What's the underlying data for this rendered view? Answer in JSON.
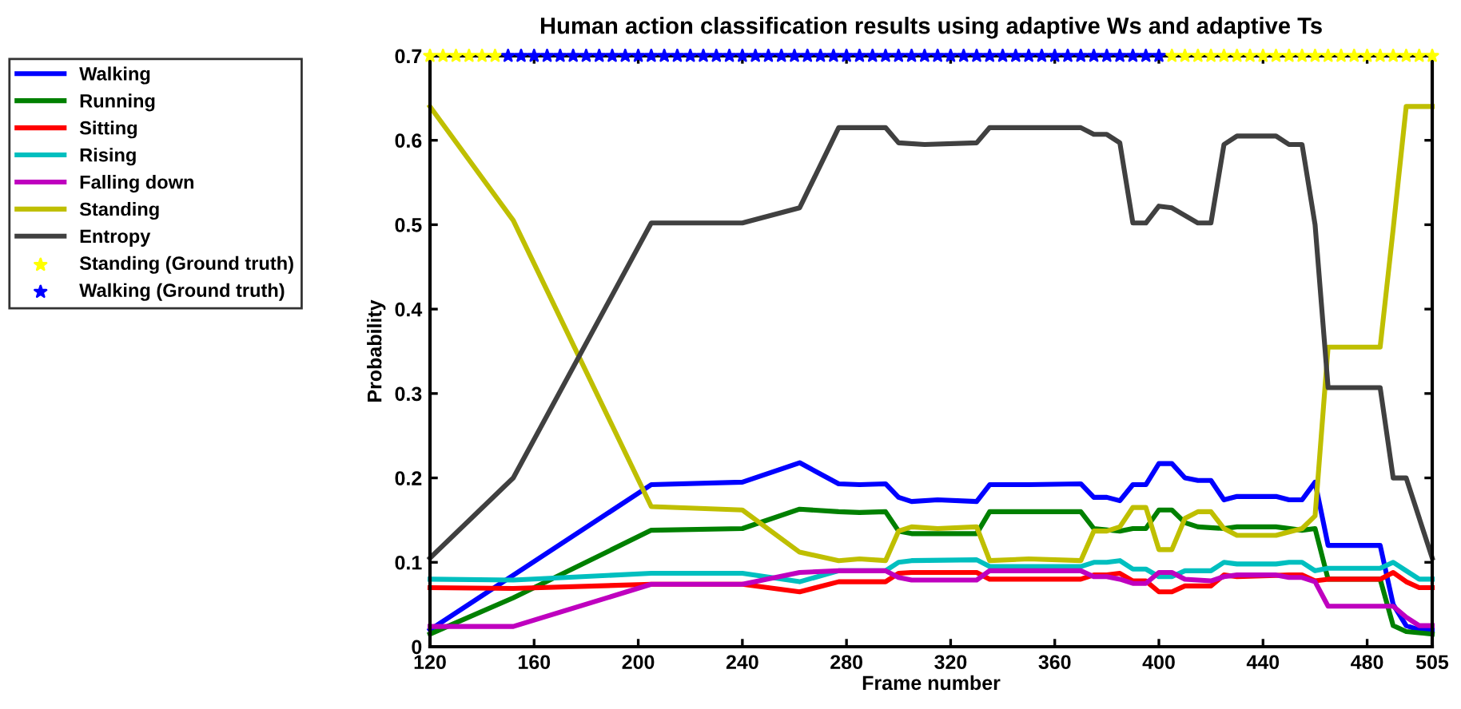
{
  "chart_data": {
    "type": "line",
    "title": "Human action classification results using adaptive Ws and adaptive Ts",
    "xlabel": "Frame number",
    "ylabel": "Probability",
    "xlim": [
      120,
      505
    ],
    "xticks": [
      120,
      160,
      200,
      240,
      280,
      320,
      360,
      400,
      440,
      480,
      505
    ],
    "ylim": [
      0,
      0.7
    ],
    "yticks": [
      0,
      0.1,
      0.2,
      0.3,
      0.4,
      0.5,
      0.6,
      0.7
    ],
    "grid": false,
    "legend": "left",
    "line_style": "solid",
    "series": [
      {
        "name": "Walking",
        "color": "#0000ff",
        "x": [
          120,
          205,
          240,
          262,
          277,
          285,
          295,
          300,
          305,
          315,
          330,
          335,
          350,
          370,
          375,
          380,
          385,
          390,
          395,
          400,
          405,
          410,
          415,
          420,
          425,
          430,
          445,
          450,
          455,
          460,
          465,
          485,
          490,
          495,
          500,
          505
        ],
        "values": [
          0.02,
          0.192,
          0.195,
          0.218,
          0.193,
          0.192,
          0.193,
          0.177,
          0.172,
          0.174,
          0.172,
          0.192,
          0.192,
          0.193,
          0.177,
          0.177,
          0.173,
          0.192,
          0.192,
          0.217,
          0.217,
          0.2,
          0.197,
          0.197,
          0.174,
          0.178,
          0.178,
          0.174,
          0.174,
          0.195,
          0.12,
          0.12,
          0.05,
          0.025,
          0.02,
          0.02
        ]
      },
      {
        "name": "Running",
        "color": "#008000",
        "x": [
          120,
          152,
          205,
          240,
          262,
          277,
          285,
          295,
          300,
          305,
          330,
          335,
          370,
          375,
          385,
          390,
          395,
          400,
          405,
          410,
          415,
          425,
          430,
          445,
          455,
          460,
          465,
          485,
          490,
          495,
          505
        ],
        "values": [
          0.015,
          0.058,
          0.138,
          0.14,
          0.163,
          0.16,
          0.159,
          0.16,
          0.137,
          0.134,
          0.134,
          0.16,
          0.16,
          0.14,
          0.137,
          0.14,
          0.14,
          0.162,
          0.162,
          0.147,
          0.142,
          0.14,
          0.142,
          0.142,
          0.138,
          0.14,
          0.08,
          0.08,
          0.025,
          0.018,
          0.015
        ]
      },
      {
        "name": "Sitting",
        "color": "#ff0000",
        "x": [
          120,
          152,
          205,
          240,
          262,
          277,
          295,
          300,
          305,
          330,
          335,
          370,
          375,
          380,
          385,
          390,
          395,
          400,
          405,
          410,
          420,
          425,
          430,
          450,
          455,
          460,
          465,
          485,
          490,
          495,
          500,
          505
        ],
        "values": [
          0.07,
          0.069,
          0.074,
          0.074,
          0.065,
          0.077,
          0.077,
          0.087,
          0.088,
          0.088,
          0.08,
          0.08,
          0.085,
          0.085,
          0.087,
          0.078,
          0.078,
          0.065,
          0.065,
          0.072,
          0.072,
          0.085,
          0.083,
          0.085,
          0.085,
          0.078,
          0.08,
          0.08,
          0.088,
          0.077,
          0.07,
          0.07
        ]
      },
      {
        "name": "Rising",
        "color": "#00bfbf",
        "x": [
          120,
          152,
          205,
          240,
          262,
          277,
          295,
          300,
          305,
          330,
          335,
          370,
          375,
          380,
          385,
          390,
          395,
          400,
          405,
          410,
          420,
          425,
          430,
          445,
          450,
          455,
          460,
          465,
          485,
          490,
          495,
          500,
          505
        ],
        "values": [
          0.08,
          0.079,
          0.087,
          0.087,
          0.077,
          0.09,
          0.09,
          0.1,
          0.102,
          0.103,
          0.095,
          0.095,
          0.1,
          0.1,
          0.102,
          0.092,
          0.092,
          0.083,
          0.083,
          0.09,
          0.09,
          0.1,
          0.098,
          0.098,
          0.1,
          0.1,
          0.09,
          0.093,
          0.093,
          0.1,
          0.09,
          0.08,
          0.08
        ]
      },
      {
        "name": "Falling down",
        "color": "#bf00bf",
        "x": [
          120,
          152,
          205,
          240,
          262,
          277,
          295,
          300,
          305,
          330,
          335,
          370,
          375,
          380,
          385,
          390,
          395,
          400,
          405,
          410,
          420,
          425,
          430,
          445,
          450,
          455,
          460,
          465,
          485,
          490,
          495,
          500,
          505
        ],
        "values": [
          0.024,
          0.024,
          0.074,
          0.074,
          0.088,
          0.09,
          0.09,
          0.082,
          0.079,
          0.079,
          0.09,
          0.09,
          0.083,
          0.083,
          0.08,
          0.075,
          0.075,
          0.088,
          0.088,
          0.08,
          0.078,
          0.083,
          0.085,
          0.085,
          0.082,
          0.082,
          0.077,
          0.048,
          0.048,
          0.048,
          0.035,
          0.025,
          0.025
        ]
      },
      {
        "name": "Standing",
        "color": "#bfbf00",
        "x": [
          120,
          152,
          205,
          240,
          262,
          277,
          285,
          295,
          300,
          305,
          315,
          330,
          335,
          350,
          370,
          375,
          380,
          385,
          390,
          395,
          400,
          405,
          410,
          415,
          420,
          425,
          430,
          445,
          455,
          460,
          465,
          485,
          490,
          495,
          505
        ],
        "values": [
          0.64,
          0.505,
          0.166,
          0.162,
          0.112,
          0.102,
          0.104,
          0.102,
          0.137,
          0.142,
          0.14,
          0.142,
          0.102,
          0.104,
          0.102,
          0.137,
          0.137,
          0.142,
          0.165,
          0.165,
          0.115,
          0.115,
          0.152,
          0.16,
          0.16,
          0.14,
          0.132,
          0.132,
          0.14,
          0.155,
          0.355,
          0.355,
          0.495,
          0.64,
          0.64
        ]
      },
      {
        "name": "Entropy",
        "color": "#404040",
        "x": [
          120,
          152,
          205,
          240,
          262,
          277,
          295,
          300,
          310,
          330,
          335,
          370,
          375,
          380,
          385,
          390,
          395,
          400,
          405,
          415,
          420,
          425,
          430,
          445,
          450,
          455,
          460,
          465,
          485,
          490,
          495,
          505
        ],
        "values": [
          0.105,
          0.2,
          0.502,
          0.502,
          0.52,
          0.615,
          0.615,
          0.597,
          0.595,
          0.597,
          0.615,
          0.615,
          0.607,
          0.607,
          0.597,
          0.502,
          0.502,
          0.522,
          0.52,
          0.502,
          0.502,
          0.595,
          0.605,
          0.605,
          0.595,
          0.595,
          0.5,
          0.307,
          0.307,
          0.2,
          0.2,
          0.105
        ]
      },
      {
        "name": "Standing (Ground truth)",
        "type": "scatter",
        "marker": "star",
        "color": "#ffff00",
        "x": [
          120,
          125,
          130,
          135,
          140,
          145,
          405,
          410,
          415,
          420,
          425,
          430,
          435,
          440,
          445,
          450,
          455,
          460,
          465,
          470,
          475,
          480,
          485,
          490,
          495,
          500,
          505
        ],
        "values": [
          0.7,
          0.7,
          0.7,
          0.7,
          0.7,
          0.7,
          0.7,
          0.7,
          0.7,
          0.7,
          0.7,
          0.7,
          0.7,
          0.7,
          0.7,
          0.7,
          0.7,
          0.7,
          0.7,
          0.7,
          0.7,
          0.7,
          0.7,
          0.7,
          0.7,
          0.7,
          0.7
        ]
      },
      {
        "name": "Walking (Ground truth)",
        "type": "scatter",
        "marker": "star",
        "color": "#0000ff",
        "x": [
          150,
          155,
          160,
          165,
          170,
          175,
          180,
          185,
          190,
          195,
          200,
          205,
          210,
          215,
          220,
          225,
          230,
          235,
          240,
          245,
          250,
          255,
          260,
          265,
          270,
          275,
          280,
          285,
          290,
          295,
          300,
          305,
          310,
          315,
          320,
          325,
          330,
          335,
          340,
          345,
          350,
          355,
          360,
          365,
          370,
          375,
          380,
          385,
          390,
          395,
          400
        ],
        "values": [
          0.7,
          0.7,
          0.7,
          0.7,
          0.7,
          0.7,
          0.7,
          0.7,
          0.7,
          0.7,
          0.7,
          0.7,
          0.7,
          0.7,
          0.7,
          0.7,
          0.7,
          0.7,
          0.7,
          0.7,
          0.7,
          0.7,
          0.7,
          0.7,
          0.7,
          0.7,
          0.7,
          0.7,
          0.7,
          0.7,
          0.7,
          0.7,
          0.7,
          0.7,
          0.7,
          0.7,
          0.7,
          0.7,
          0.7,
          0.7,
          0.7,
          0.7,
          0.7,
          0.7,
          0.7,
          0.7,
          0.7,
          0.7,
          0.7,
          0.7,
          0.7
        ]
      }
    ]
  }
}
